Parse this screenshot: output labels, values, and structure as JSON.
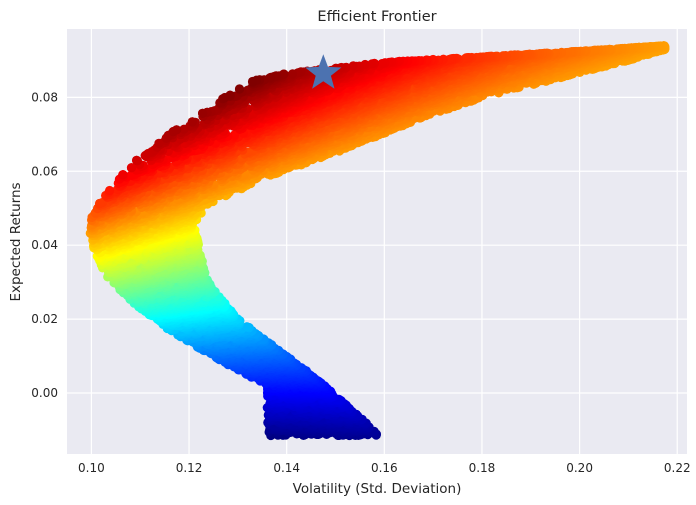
{
  "chart_data": {
    "type": "scatter",
    "title": "Efficient Frontier",
    "xlabel": "Volatility (Std. Deviation)",
    "ylabel": "Expected Returns",
    "xlim": [
      0.095,
      0.222
    ],
    "ylim": [
      -0.0165,
      0.0985
    ],
    "xticks": [
      0.1,
      0.12,
      0.14,
      0.16,
      0.18,
      0.2,
      0.22
    ],
    "xtick_labels": [
      "0.10",
      "0.12",
      "0.14",
      "0.16",
      "0.18",
      "0.20",
      "0.22"
    ],
    "yticks": [
      0.0,
      0.02,
      0.04,
      0.06,
      0.08
    ],
    "ytick_labels": [
      "0.00",
      "0.02",
      "0.04",
      "0.06",
      "0.08"
    ],
    "grid": true,
    "colormap": "jet",
    "colors": {
      "background": "#EAEAF2",
      "grid": "#FFFFFF",
      "text": "#262626",
      "marker_star": "#4C72B0"
    },
    "highlight_point": {
      "marker": "star",
      "x": 0.1475,
      "y": 0.0865
    },
    "point_cloud": {
      "description_shape": "boomerang cloud of random portfolios",
      "min_volatility_envelope": [
        [
          0.159,
          -0.0115
        ],
        [
          0.152,
          -0.0075
        ],
        [
          0.144,
          -0.003
        ],
        [
          0.136,
          0.002
        ],
        [
          0.126,
          0.009
        ],
        [
          0.116,
          0.017
        ],
        [
          0.108,
          0.025
        ],
        [
          0.102,
          0.033
        ],
        [
          0.0995,
          0.042
        ],
        [
          0.1,
          0.048
        ],
        [
          0.104,
          0.056
        ],
        [
          0.11,
          0.064
        ],
        [
          0.118,
          0.072
        ],
        [
          0.127,
          0.08
        ],
        [
          0.133,
          0.0845
        ],
        [
          0.14,
          0.0865
        ],
        [
          0.16,
          0.0895
        ],
        [
          0.18,
          0.091
        ],
        [
          0.2,
          0.0925
        ],
        [
          0.2175,
          0.094
        ]
      ],
      "max_volatility_envelope": [
        [
          0.2175,
          0.094
        ],
        [
          0.21,
          0.09
        ],
        [
          0.195,
          0.085
        ],
        [
          0.18,
          0.08
        ],
        [
          0.165,
          0.073
        ],
        [
          0.15,
          0.065
        ],
        [
          0.135,
          0.058
        ],
        [
          0.124,
          0.051
        ],
        [
          0.121,
          0.046
        ],
        [
          0.122,
          0.04
        ],
        [
          0.123,
          0.034
        ],
        [
          0.125,
          0.028
        ],
        [
          0.13,
          0.02
        ],
        [
          0.138,
          0.012
        ],
        [
          0.146,
          0.004
        ],
        [
          0.153,
          -0.004
        ],
        [
          0.159,
          -0.0115
        ]
      ],
      "n_points": 9000
    }
  }
}
